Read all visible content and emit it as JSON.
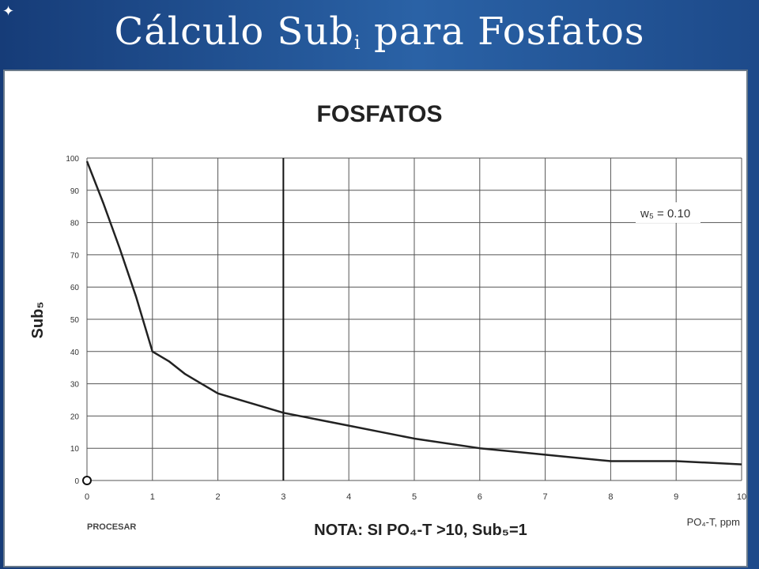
{
  "slide": {
    "title_main": "Cálculo Sub",
    "title_sub": "i",
    "title_rest": " para Fosfatos",
    "corner_mark": "✦"
  },
  "chart_data": {
    "type": "line",
    "title": "FOSFATOS",
    "xlabel": "PO₄-T, ppm",
    "ylabel": "Sub₅",
    "xlim": [
      0,
      10
    ],
    "ylim": [
      0,
      100
    ],
    "x_ticks": [
      "0",
      "1",
      "2",
      "3",
      "4",
      "5",
      "6",
      "7",
      "8",
      "9",
      "10"
    ],
    "y_ticks": [
      "0",
      "10",
      "20",
      "30",
      "40",
      "50",
      "60",
      "70",
      "80",
      "90",
      "100"
    ],
    "grid": true,
    "weight_label": "w₅ = 0.10",
    "footer_left": "PROCESAR",
    "note": "NOTA: SI PO₄-T >10, Sub₅=1",
    "marker_x": 3,
    "series": [
      {
        "x": [
          0,
          0.25,
          0.5,
          0.75,
          1,
          1.25,
          1.5,
          2,
          2.5,
          3,
          3.5,
          4,
          4.5,
          5,
          6,
          7,
          8,
          9,
          10
        ],
        "values": [
          99,
          86,
          72,
          57,
          40,
          37,
          33,
          27,
          24,
          21,
          19,
          17,
          15,
          13,
          10,
          8,
          6,
          6,
          5
        ]
      }
    ],
    "colors": {
      "line": "#222222",
      "grid": "#555555",
      "marker_line": "#111111"
    }
  }
}
